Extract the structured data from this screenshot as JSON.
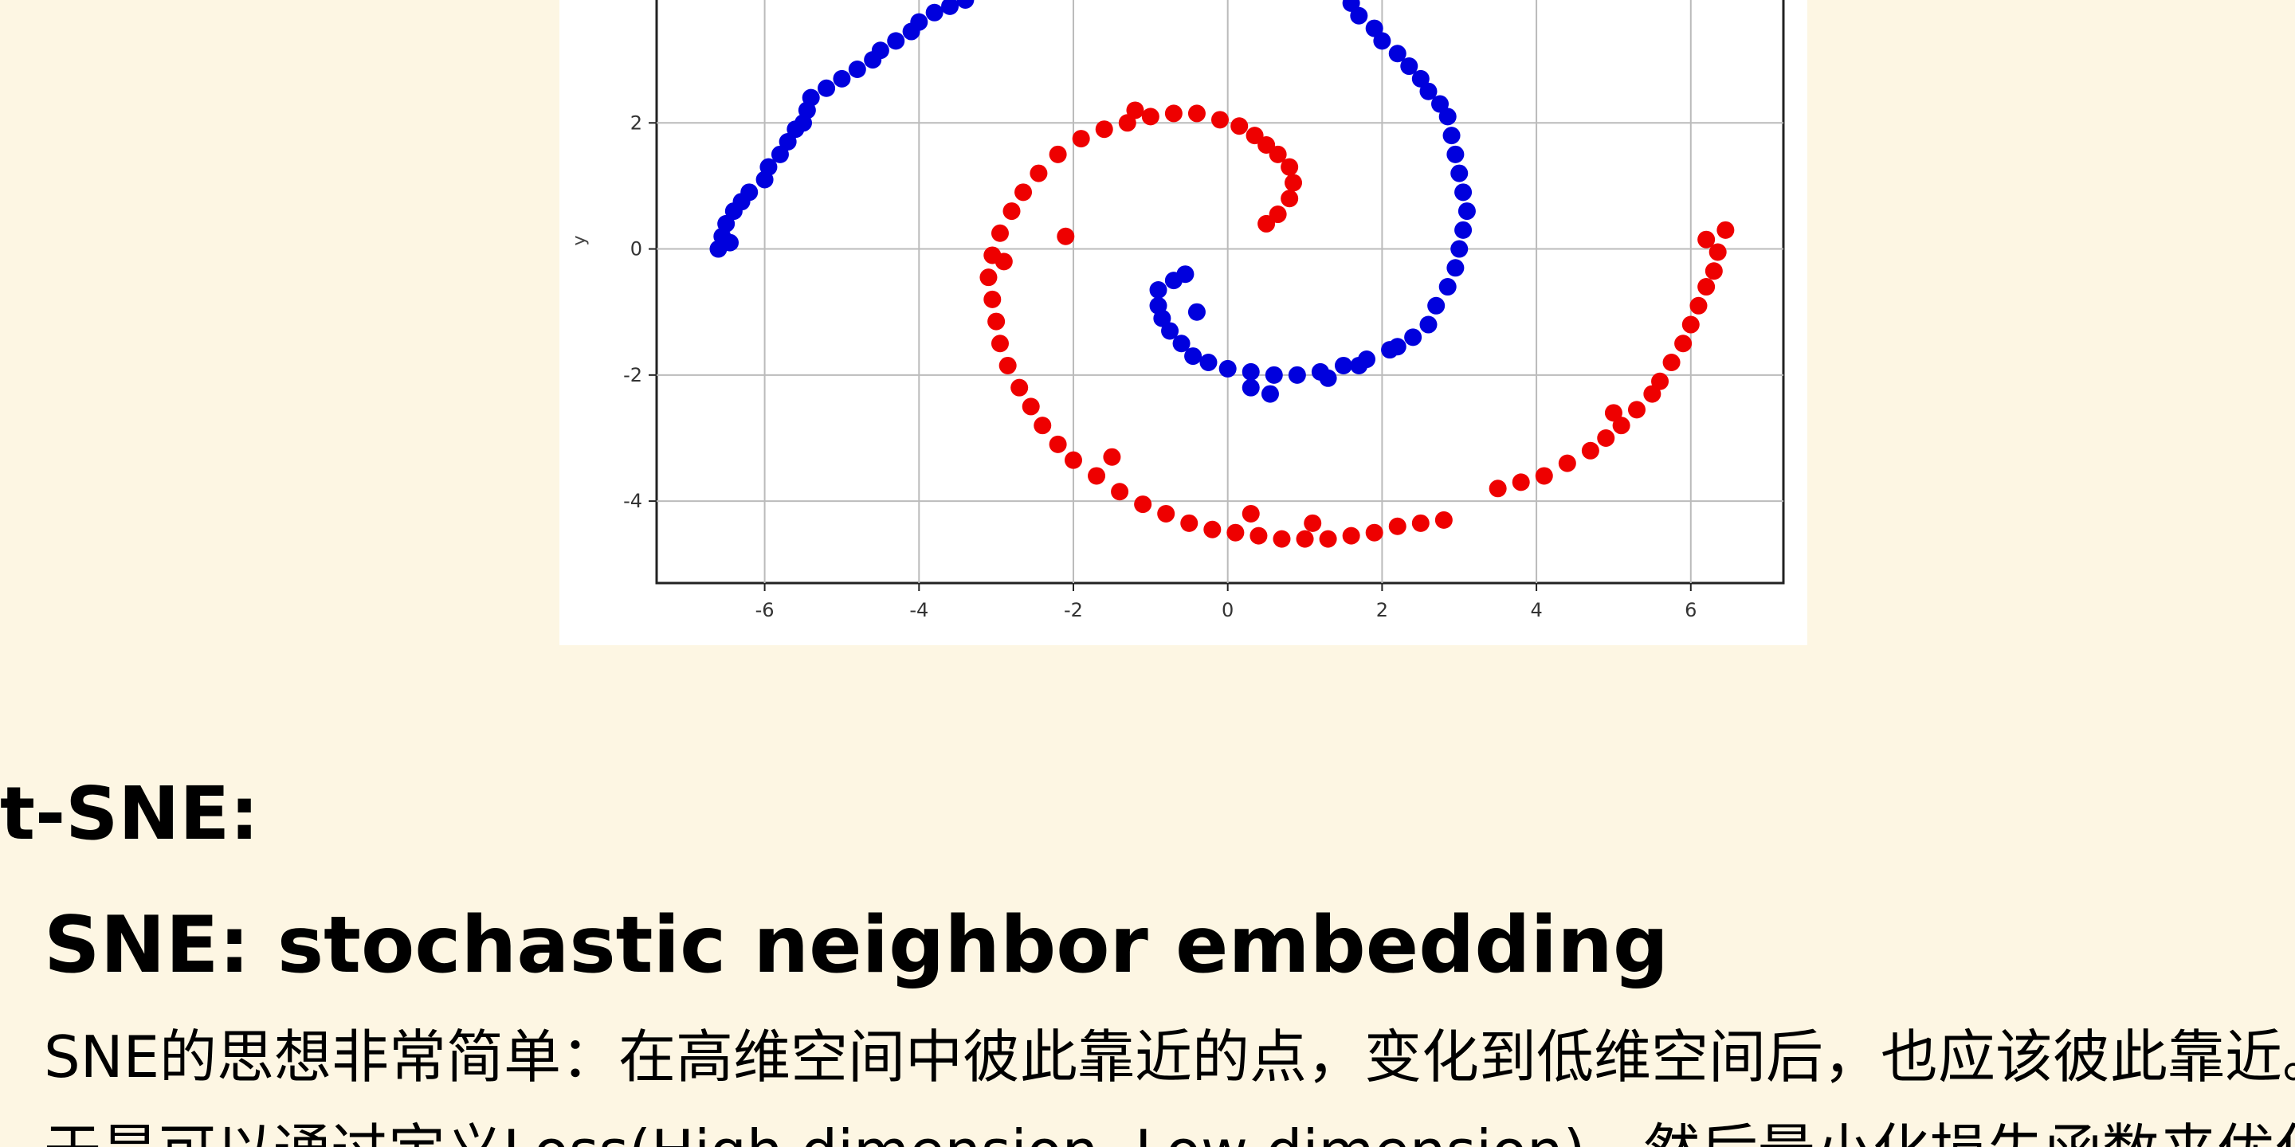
{
  "chart_data": {
    "type": "scatter",
    "title": "",
    "xlabel": "",
    "ylabel": "y",
    "xlim": [
      -7.4,
      7.2
    ],
    "ylim": [
      -5.3,
      4.0
    ],
    "xticks": [
      -6,
      -4,
      -2,
      0,
      2,
      4,
      6
    ],
    "yticks": [
      -4,
      -2,
      0,
      2
    ],
    "xtick_labels": [
      "-6",
      "-4",
      "-2",
      "0",
      "2",
      "4",
      "6"
    ],
    "ytick_labels": [
      "-4",
      "-2",
      "0",
      "2"
    ],
    "grid": true,
    "series": [
      {
        "color": "#0000dd",
        "points": [
          [
            -6.6,
            0.0
          ],
          [
            -6.55,
            0.2
          ],
          [
            -6.5,
            0.4
          ],
          [
            -6.4,
            0.6
          ],
          [
            -6.45,
            0.1
          ],
          [
            -6.3,
            0.75
          ],
          [
            -6.2,
            0.9
          ],
          [
            -6.0,
            1.1
          ],
          [
            -5.95,
            1.3
          ],
          [
            -5.8,
            1.5
          ],
          [
            -5.7,
            1.7
          ],
          [
            -5.6,
            1.9
          ],
          [
            -5.5,
            2.0
          ],
          [
            -5.45,
            2.2
          ],
          [
            -5.4,
            2.4
          ],
          [
            -5.2,
            2.55
          ],
          [
            -5.0,
            2.7
          ],
          [
            -4.8,
            2.85
          ],
          [
            -4.6,
            3.0
          ],
          [
            -4.5,
            3.15
          ],
          [
            -4.3,
            3.3
          ],
          [
            -4.1,
            3.45
          ],
          [
            -4.0,
            3.6
          ],
          [
            -3.8,
            3.75
          ],
          [
            -3.6,
            3.85
          ],
          [
            -3.4,
            3.95
          ],
          [
            1.6,
            3.9
          ],
          [
            1.7,
            3.7
          ],
          [
            1.9,
            3.5
          ],
          [
            2.0,
            3.3
          ],
          [
            2.2,
            3.1
          ],
          [
            2.35,
            2.9
          ],
          [
            2.5,
            2.7
          ],
          [
            2.6,
            2.5
          ],
          [
            2.75,
            2.3
          ],
          [
            2.85,
            2.1
          ],
          [
            2.9,
            1.8
          ],
          [
            2.95,
            1.5
          ],
          [
            3.0,
            1.2
          ],
          [
            3.05,
            0.9
          ],
          [
            3.1,
            0.6
          ],
          [
            3.05,
            0.3
          ],
          [
            3.0,
            0.0
          ],
          [
            2.95,
            -0.3
          ],
          [
            2.85,
            -0.6
          ],
          [
            2.7,
            -0.9
          ],
          [
            2.6,
            -1.2
          ],
          [
            2.4,
            -1.4
          ],
          [
            2.1,
            -1.6
          ],
          [
            1.8,
            -1.75
          ],
          [
            1.5,
            -1.85
          ],
          [
            1.2,
            -1.95
          ],
          [
            0.9,
            -2.0
          ],
          [
            0.6,
            -2.0
          ],
          [
            0.3,
            -1.95
          ],
          [
            0.0,
            -1.9
          ],
          [
            -0.25,
            -1.8
          ],
          [
            -0.45,
            -1.7
          ],
          [
            -0.6,
            -1.5
          ],
          [
            -0.75,
            -1.3
          ],
          [
            -0.85,
            -1.1
          ],
          [
            -0.9,
            -0.9
          ],
          [
            -0.9,
            -0.65
          ],
          [
            -0.7,
            -0.5
          ],
          [
            -0.55,
            -0.4
          ],
          [
            -0.4,
            -1.0
          ],
          [
            0.3,
            -2.2
          ],
          [
            0.55,
            -2.3
          ],
          [
            1.3,
            -2.05
          ],
          [
            1.7,
            -1.85
          ],
          [
            2.2,
            -1.55
          ]
        ]
      },
      {
        "color": "#ee0000",
        "points": [
          [
            0.5,
            0.4
          ],
          [
            0.65,
            0.55
          ],
          [
            0.8,
            0.8
          ],
          [
            0.85,
            1.05
          ],
          [
            0.8,
            1.3
          ],
          [
            0.65,
            1.5
          ],
          [
            0.5,
            1.65
          ],
          [
            0.35,
            1.8
          ],
          [
            0.15,
            1.95
          ],
          [
            -0.1,
            2.05
          ],
          [
            -0.4,
            2.15
          ],
          [
            -0.7,
            2.15
          ],
          [
            -1.0,
            2.1
          ],
          [
            -1.3,
            2.0
          ],
          [
            -1.6,
            1.9
          ],
          [
            -1.9,
            1.75
          ],
          [
            -2.2,
            1.5
          ],
          [
            -2.45,
            1.2
          ],
          [
            -2.65,
            0.9
          ],
          [
            -2.8,
            0.6
          ],
          [
            -2.95,
            0.25
          ],
          [
            -3.05,
            -0.1
          ],
          [
            -3.1,
            -0.45
          ],
          [
            -3.05,
            -0.8
          ],
          [
            -3.0,
            -1.15
          ],
          [
            -2.95,
            -1.5
          ],
          [
            -2.85,
            -1.85
          ],
          [
            -2.7,
            -2.2
          ],
          [
            -2.55,
            -2.5
          ],
          [
            -2.4,
            -2.8
          ],
          [
            -2.2,
            -3.1
          ],
          [
            -2.0,
            -3.35
          ],
          [
            -1.7,
            -3.6
          ],
          [
            -1.4,
            -3.85
          ],
          [
            -1.1,
            -4.05
          ],
          [
            -0.8,
            -4.2
          ],
          [
            -0.5,
            -4.35
          ],
          [
            -0.2,
            -4.45
          ],
          [
            0.1,
            -4.5
          ],
          [
            0.4,
            -4.55
          ],
          [
            0.7,
            -4.6
          ],
          [
            1.0,
            -4.6
          ],
          [
            1.3,
            -4.6
          ],
          [
            1.6,
            -4.55
          ],
          [
            1.9,
            -4.5
          ],
          [
            2.2,
            -4.4
          ],
          [
            2.5,
            -4.35
          ],
          [
            2.8,
            -4.3
          ],
          [
            3.5,
            -3.8
          ],
          [
            3.8,
            -3.7
          ],
          [
            4.1,
            -3.6
          ],
          [
            4.4,
            -3.4
          ],
          [
            4.7,
            -3.2
          ],
          [
            4.9,
            -3.0
          ],
          [
            5.1,
            -2.8
          ],
          [
            5.3,
            -2.55
          ],
          [
            5.5,
            -2.3
          ],
          [
            5.6,
            -2.1
          ],
          [
            5.75,
            -1.8
          ],
          [
            5.9,
            -1.5
          ],
          [
            6.0,
            -1.2
          ],
          [
            6.1,
            -0.9
          ],
          [
            6.2,
            -0.6
          ],
          [
            6.3,
            -0.35
          ],
          [
            6.35,
            -0.05
          ],
          [
            6.2,
            0.15
          ],
          [
            6.45,
            0.3
          ],
          [
            -1.2,
            2.2
          ],
          [
            -2.1,
            0.2
          ],
          [
            -2.9,
            -0.2
          ],
          [
            -1.5,
            -3.3
          ],
          [
            0.3,
            -4.2
          ],
          [
            1.1,
            -4.35
          ],
          [
            5.0,
            -2.6
          ]
        ]
      }
    ]
  },
  "heading": "t-SNE:",
  "subheading": "SNE: stochastic neighbor embedding",
  "paragraph": "SNE的思想非常简单：在高维空间中彼此靠近的点，变化到低维空间后，也应该彼此靠近。",
  "paragraph_cut": "于是可以通过定义Loss(High dimension, Low dimension)，然后最小化损失函数来优化。"
}
